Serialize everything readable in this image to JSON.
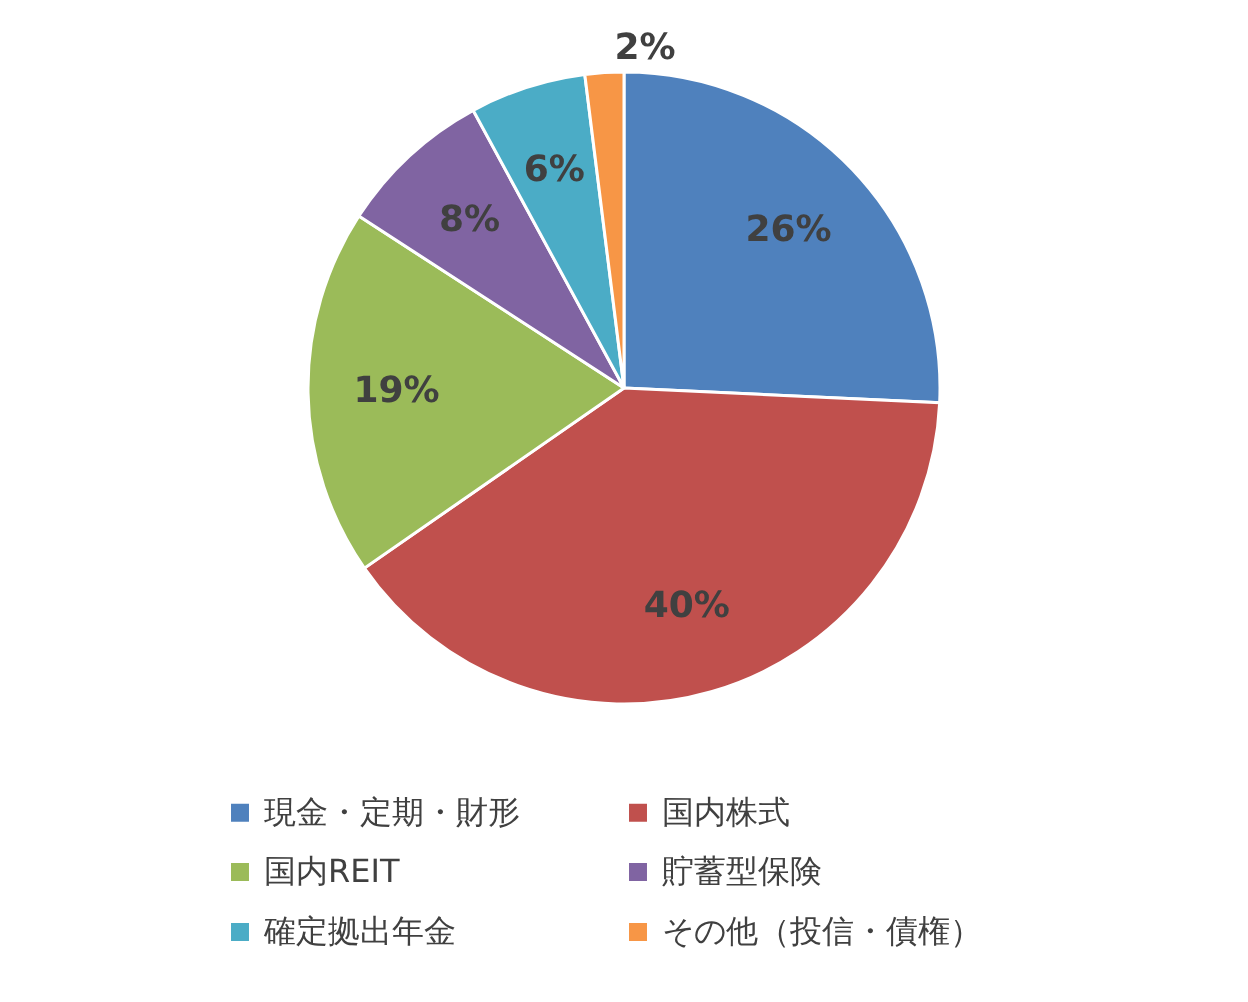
{
  "chart_data": {
    "type": "pie",
    "categories": [
      "現金・定期・財形",
      "国内株式",
      "国内REIT",
      "貯蓄型保険",
      "確定拠出年金",
      "その他（投信・債権）"
    ],
    "values": [
      26,
      40,
      19,
      8,
      6,
      2
    ],
    "colors": [
      "#4f81bd",
      "#c0504d",
      "#9bbb59",
      "#8064a2",
      "#4bacc6",
      "#f79646"
    ],
    "value_labels": [
      "26%",
      "40%",
      "19%",
      "8%",
      "6%",
      "2%"
    ],
    "legend": "bottom"
  }
}
